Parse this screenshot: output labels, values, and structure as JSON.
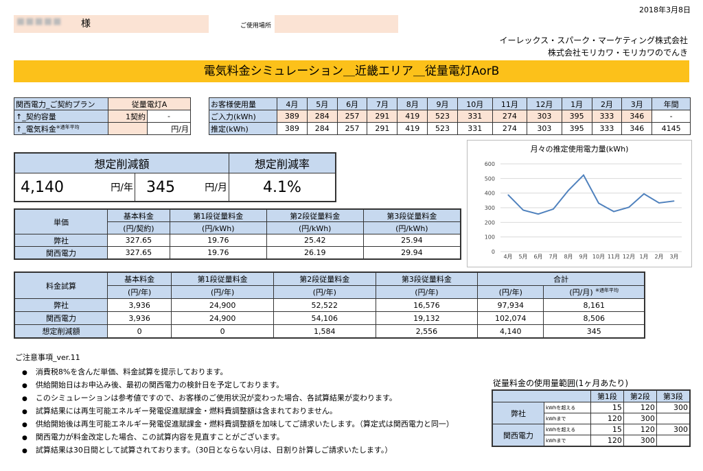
{
  "header": {
    "date": "2018年3月8日",
    "customer_name": "■■■■■",
    "sama": "様",
    "place_label": "ご使用場所",
    "company1": "イーレックス・スパーク・マーケティング株式会社",
    "company2": "株式会社モリカワ・モリカワのでんき",
    "banner": "電気料金シミュレーション＿近畿エリア＿従量電灯AorB"
  },
  "plan": {
    "rows": [
      {
        "label": "関西電力_ご契約プラン",
        "value": "従量電灯A",
        "unit": ""
      },
      {
        "label": "↑_契約容量",
        "value": "1契約",
        "unit": "-"
      },
      {
        "label": "↑_電気料金",
        "sup": "※通年平均",
        "value": "",
        "unit": "円/月"
      }
    ]
  },
  "usage": {
    "header_label": "お客様使用量",
    "months": [
      "4月",
      "5月",
      "6月",
      "7月",
      "8月",
      "9月",
      "10月",
      "11月",
      "12月",
      "1月",
      "2月",
      "3月",
      "年間"
    ],
    "input_label": "ご入力(kWh)",
    "input": [
      "389",
      "284",
      "257",
      "291",
      "419",
      "523",
      "331",
      "274",
      "303",
      "395",
      "333",
      "346",
      "-"
    ],
    "est_label": "推定(kWh)",
    "est": [
      "389",
      "284",
      "257",
      "291",
      "419",
      "523",
      "331",
      "274",
      "303",
      "395",
      "333",
      "346",
      "4145"
    ]
  },
  "savings": {
    "amount_label": "想定削減額",
    "rate_label": "想定削減率",
    "yearly": "4,140",
    "yearly_unit": "円/年",
    "monthly": "345",
    "monthly_unit": "円/月",
    "rate": "4.1%"
  },
  "unit_price": {
    "label": "単価",
    "headers": [
      "基本料金",
      "第1段従量料金",
      "第2段従量料金",
      "第3段従量料金"
    ],
    "subheaders": [
      "(円/契約)",
      "(円/kWh)",
      "(円/kWh)",
      "(円/kWh)"
    ],
    "rows": [
      {
        "name": "弊社",
        "values": [
          "327.65",
          "19.76",
          "25.42",
          "25.94"
        ]
      },
      {
        "name": "関西電力",
        "values": [
          "327.65",
          "19.76",
          "26.19",
          "29.94"
        ]
      }
    ]
  },
  "trial": {
    "label": "料金試算",
    "headers": [
      "基本料金",
      "第1段従量料金",
      "第2段従量料金",
      "第3段従量料金",
      "合計"
    ],
    "subheaders": [
      "(円/年)",
      "(円/年)",
      "(円/年)",
      "(円/年)",
      "(円/年)",
      "(円/月)"
    ],
    "sub_note": "※通年平均",
    "rows": [
      {
        "name": "弊社",
        "values": [
          "3,936",
          "24,900",
          "52,522",
          "16,576",
          "97,934",
          "8,161"
        ]
      },
      {
        "name": "関西電力",
        "values": [
          "3,936",
          "24,900",
          "54,106",
          "19,132",
          "102,074",
          "8,506"
        ]
      },
      {
        "name": "想定削減額",
        "values": [
          "0",
          "0",
          "1,584",
          "2,556",
          "4,140",
          "345"
        ]
      }
    ]
  },
  "chart_data": {
    "type": "line",
    "title": "月々の推定使用電力量(kWh)",
    "categories": [
      "4月",
      "5月",
      "6月",
      "7月",
      "8月",
      "9月",
      "10月",
      "11月",
      "12月",
      "1月",
      "2月",
      "3月"
    ],
    "values": [
      389,
      284,
      257,
      291,
      419,
      523,
      331,
      274,
      303,
      395,
      333,
      346
    ],
    "ylim": [
      0,
      600
    ],
    "yticks": [
      "0",
      "100",
      "200",
      "300",
      "400",
      "500",
      "600"
    ],
    "grid": true,
    "color": "#4f81bd"
  },
  "notes": {
    "title": "ご注意事項_ver.11",
    "items": [
      "消費税8%を含んだ単価、料金試算を提示しております。",
      "供給開始日はお申込み後、最初の関西電力の検針日を予定しております。",
      "このシミュレーションは参考値ですので、お客様のご使用状況が変わった場合、各試算結果が変わります。",
      "試算結果には再生可能エネルギー発電促進賦課金・燃料費調整額は含まれておりません。",
      "供給開始後は再生可能エネルギー発電促進賦課金・燃料費調整額を加味してご請求いたします。（算定式は関西電力と同一）",
      "関西電力が料金改定した場合、この試算内容を見直すことがございます。",
      "試算結果は30日間として試算されております。（30日とならない月は、日割り計算しご請求いたします。）"
    ]
  },
  "range": {
    "title": "従量料金の使用量範囲(1ヶ月あたり)",
    "headers": [
      "第1段",
      "第2段",
      "第3段"
    ],
    "over_label": "kWhを超える",
    "upto_label": "kWhまで",
    "rows": [
      {
        "name": "弊社",
        "over": [
          "",
          "15",
          "120",
          "300"
        ],
        "upto": [
          "",
          "120",
          "300",
          ""
        ]
      },
      {
        "name": "関西電力",
        "over": [
          "",
          "15",
          "120",
          "300"
        ],
        "upto": [
          "",
          "120",
          "300",
          ""
        ]
      }
    ]
  }
}
